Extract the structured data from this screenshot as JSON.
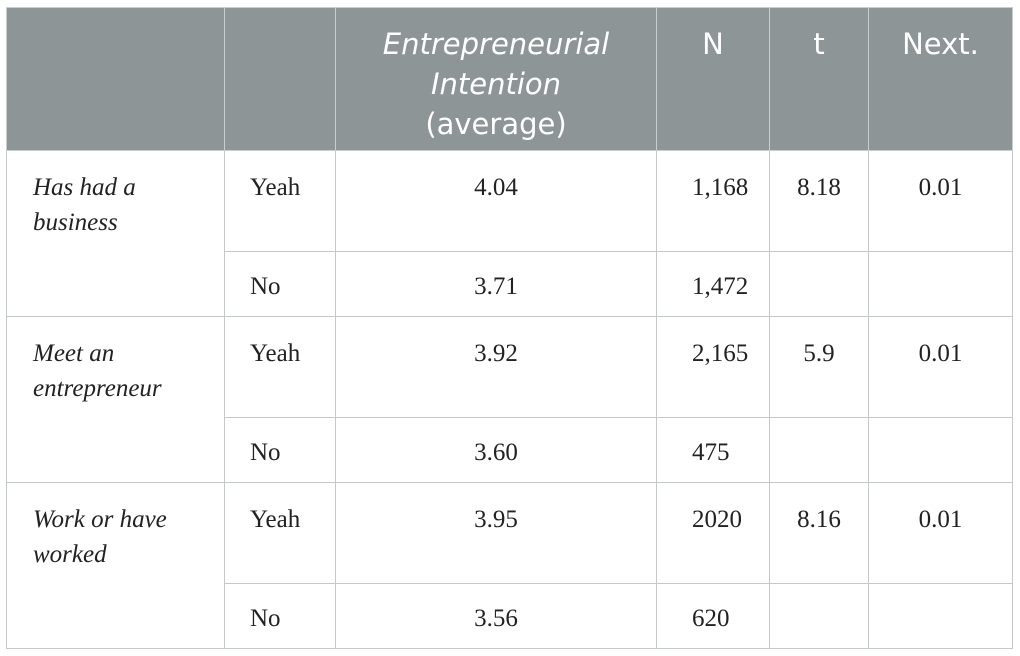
{
  "header": {
    "col1": "",
    "col2": "",
    "col3_line1": "Entrepreneurial Intention",
    "col3_line2": "(average)",
    "col4": "N",
    "col5": "t",
    "col6": "Next."
  },
  "groups": [
    {
      "label": "Has had a business",
      "rows": [
        {
          "response": "Yeah",
          "average": "4.04",
          "n": "1,168",
          "t": "8.18",
          "next": "0.01"
        },
        {
          "response": "No",
          "average": "3.71",
          "n": "1,472",
          "t": "",
          "next": ""
        }
      ]
    },
    {
      "label": "Meet an entrepreneur",
      "rows": [
        {
          "response": "Yeah",
          "average": "3.92",
          "n": "2,165",
          "t": "5.9",
          "next": "0.01"
        },
        {
          "response": "No",
          "average": "3.60",
          "n": "475",
          "t": "",
          "next": ""
        }
      ]
    },
    {
      "label": "Work or have worked",
      "rows": [
        {
          "response": "Yeah",
          "average": "3.95",
          "n": "2020",
          "t": "8.16",
          "next": "0.01"
        },
        {
          "response": "No",
          "average": "3.56",
          "n": "620",
          "t": "",
          "next": ""
        }
      ]
    }
  ]
}
